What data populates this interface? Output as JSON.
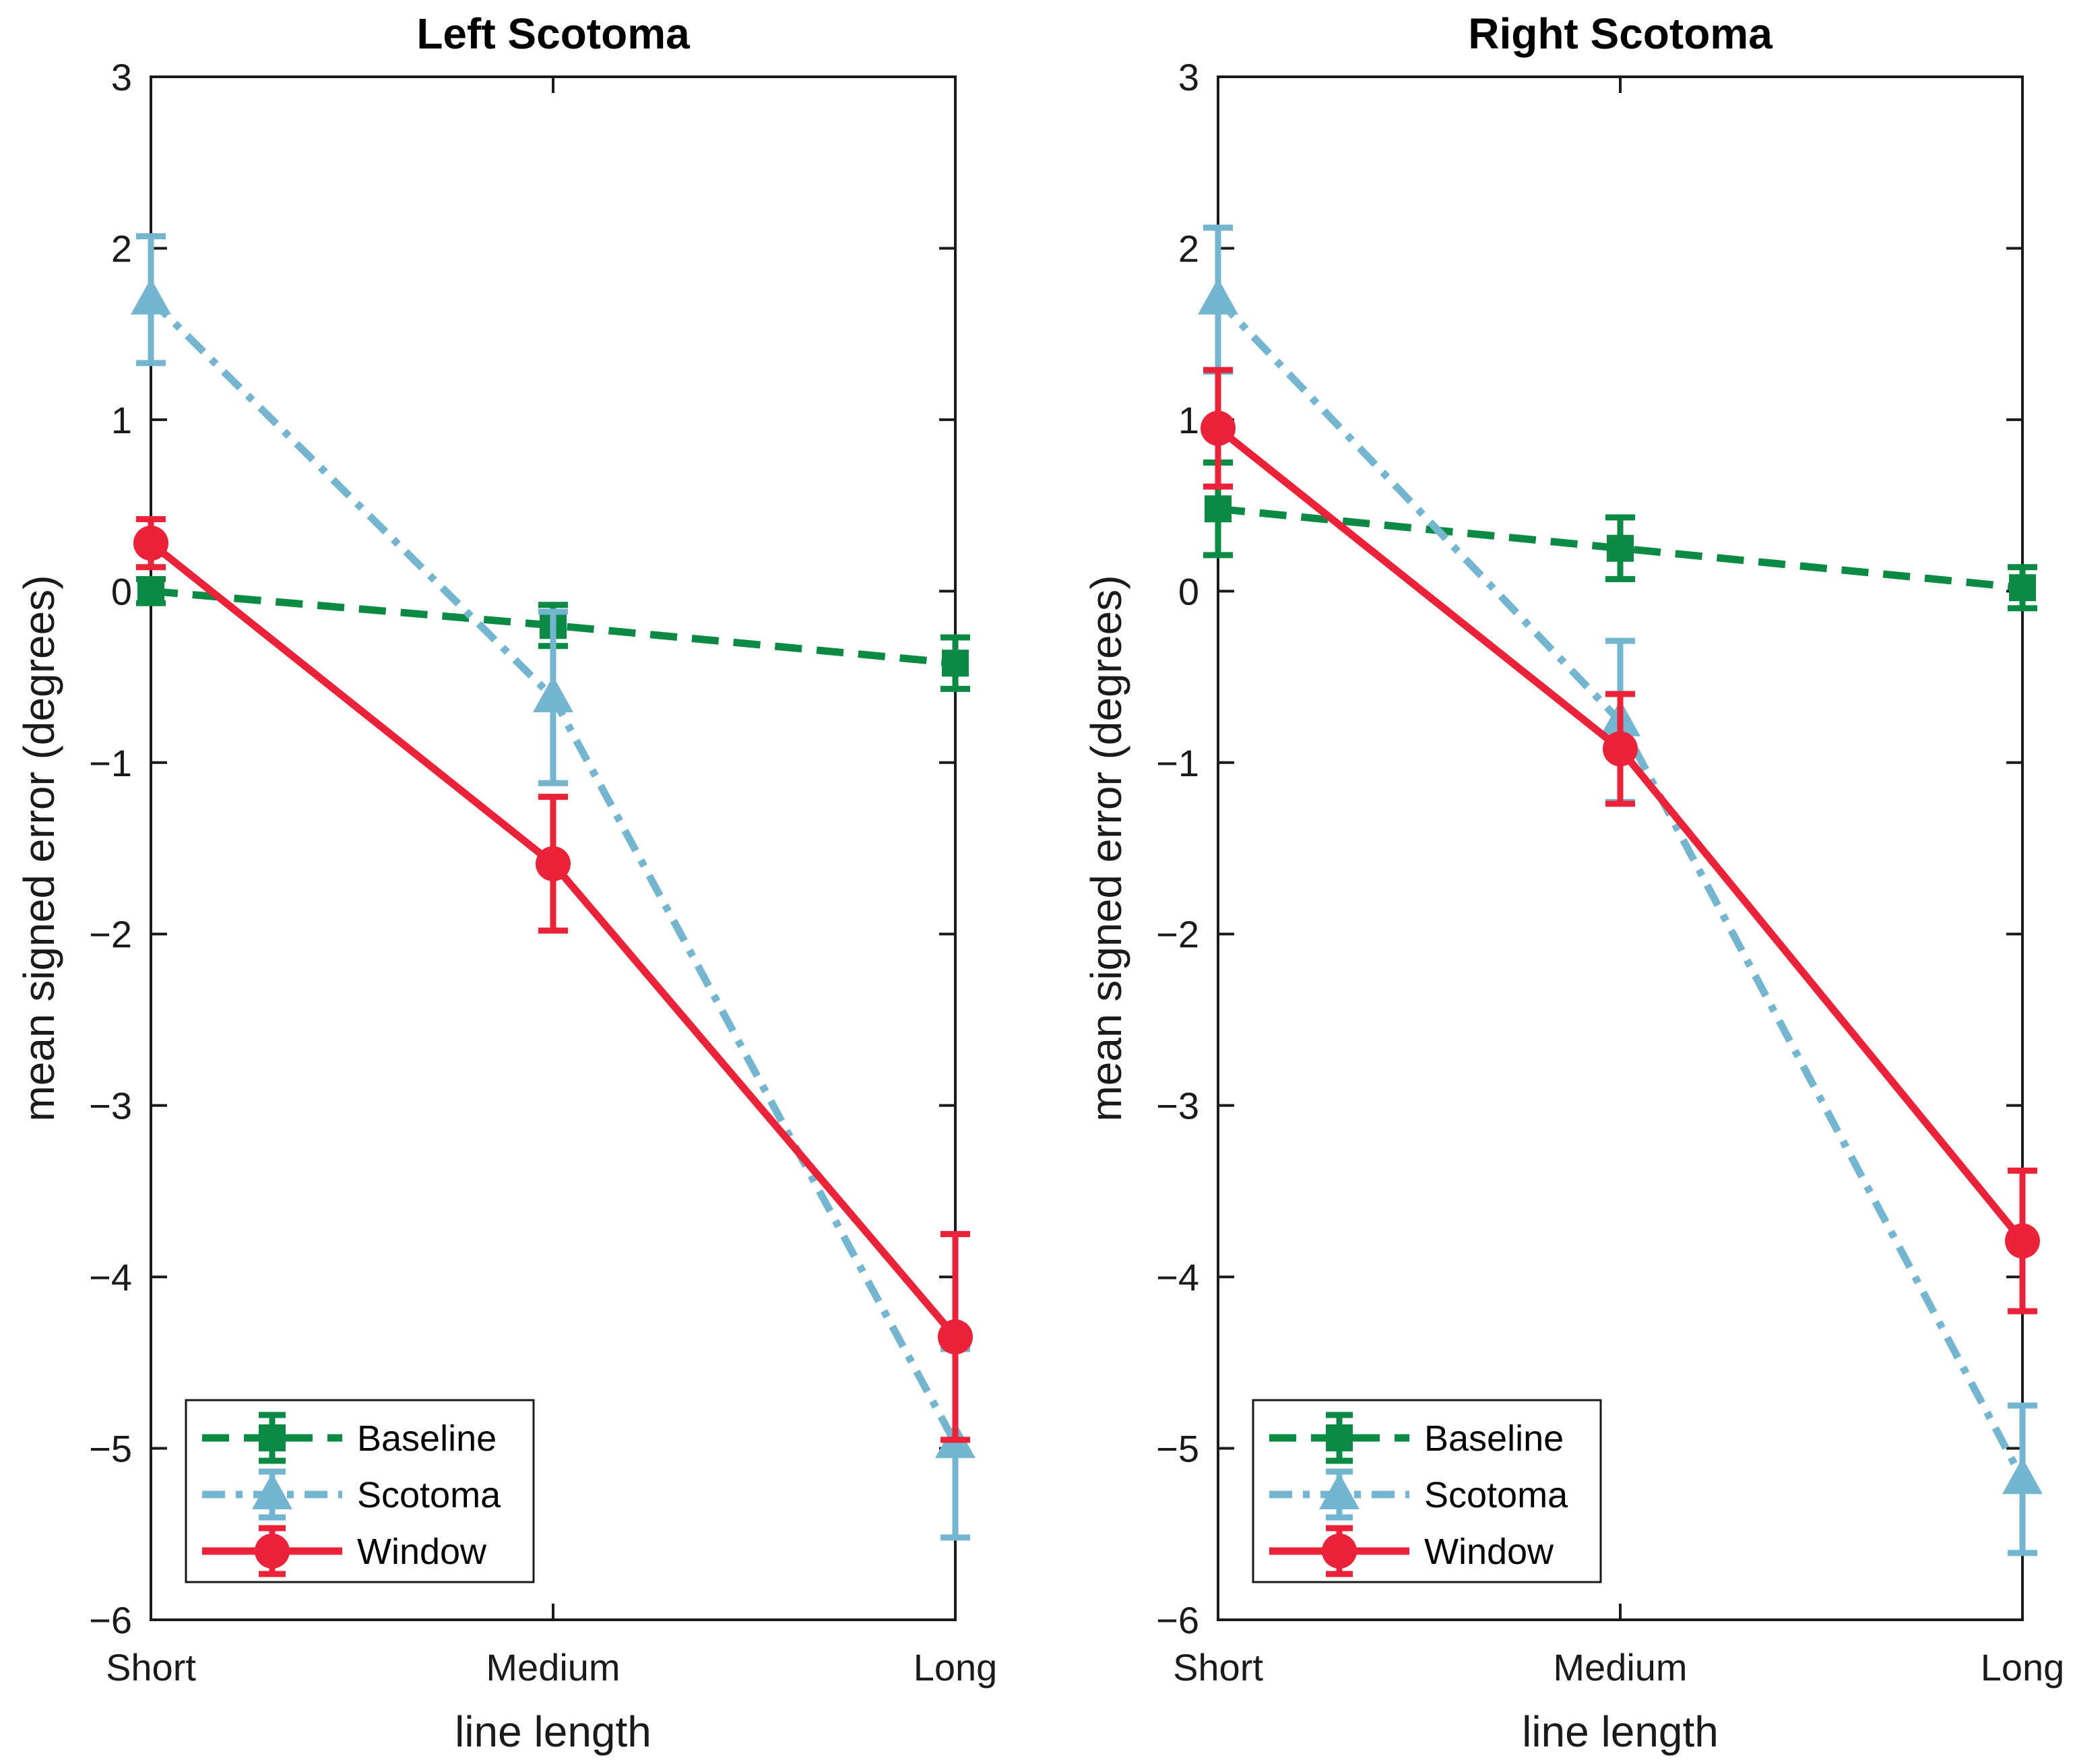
{
  "chart_data": [
    {
      "type": "line",
      "title": "Left Scotoma",
      "xlabel": "line length",
      "ylabel": "mean signed error (degrees)",
      "categories": [
        "Short",
        "Medium",
        "Long"
      ],
      "ylim": [
        -6,
        3
      ],
      "yticks": [
        3,
        2,
        1,
        0,
        -1,
        -2,
        -3,
        -4,
        -5,
        -6
      ],
      "ytick_labels": [
        "3",
        "2",
        "1",
        "0",
        "−1",
        "−2",
        "−3",
        "−4",
        "−5",
        "−6"
      ],
      "legend_position": "bottom-left",
      "series": [
        {
          "name": "Baseline",
          "style": "dashed",
          "marker": "square",
          "color": "#0a8a43",
          "values": [
            0.0,
            -0.2,
            -0.42
          ],
          "errors": [
            0.07,
            0.12,
            0.15
          ]
        },
        {
          "name": "Scotoma",
          "style": "dashdot",
          "marker": "triangle",
          "color": "#74b6cf",
          "values": [
            1.7,
            -0.62,
            -4.97
          ],
          "errors": [
            0.37,
            0.5,
            0.55
          ]
        },
        {
          "name": "Window",
          "style": "solid",
          "marker": "circle",
          "color": "#ec2239",
          "values": [
            0.28,
            -1.59,
            -4.35
          ],
          "errors": [
            0.14,
            0.39,
            0.6
          ]
        }
      ]
    },
    {
      "type": "line",
      "title": "Right Scotoma",
      "xlabel": "line length",
      "ylabel": "mean signed error (degrees)",
      "categories": [
        "Short",
        "Medium",
        "Long"
      ],
      "ylim": [
        -6,
        3
      ],
      "yticks": [
        3,
        2,
        1,
        0,
        -1,
        -2,
        -3,
        -4,
        -5,
        -6
      ],
      "ytick_labels": [
        "3",
        "2",
        "1",
        "0",
        "−1",
        "−2",
        "−3",
        "−4",
        "−5",
        "−6"
      ],
      "legend_position": "bottom-left",
      "series": [
        {
          "name": "Baseline",
          "style": "dashed",
          "marker": "square",
          "color": "#0a8a43",
          "values": [
            0.48,
            0.25,
            0.02
          ],
          "errors": [
            0.27,
            0.18,
            0.12
          ]
        },
        {
          "name": "Scotoma",
          "style": "dashdot",
          "marker": "triangle",
          "color": "#74b6cf",
          "values": [
            1.7,
            -0.76,
            -5.18
          ],
          "errors": [
            0.42,
            0.47,
            0.43
          ]
        },
        {
          "name": "Window",
          "style": "solid",
          "marker": "circle",
          "color": "#ec2239",
          "values": [
            0.95,
            -0.92,
            -3.79
          ],
          "errors": [
            0.34,
            0.32,
            0.41
          ]
        }
      ]
    }
  ]
}
